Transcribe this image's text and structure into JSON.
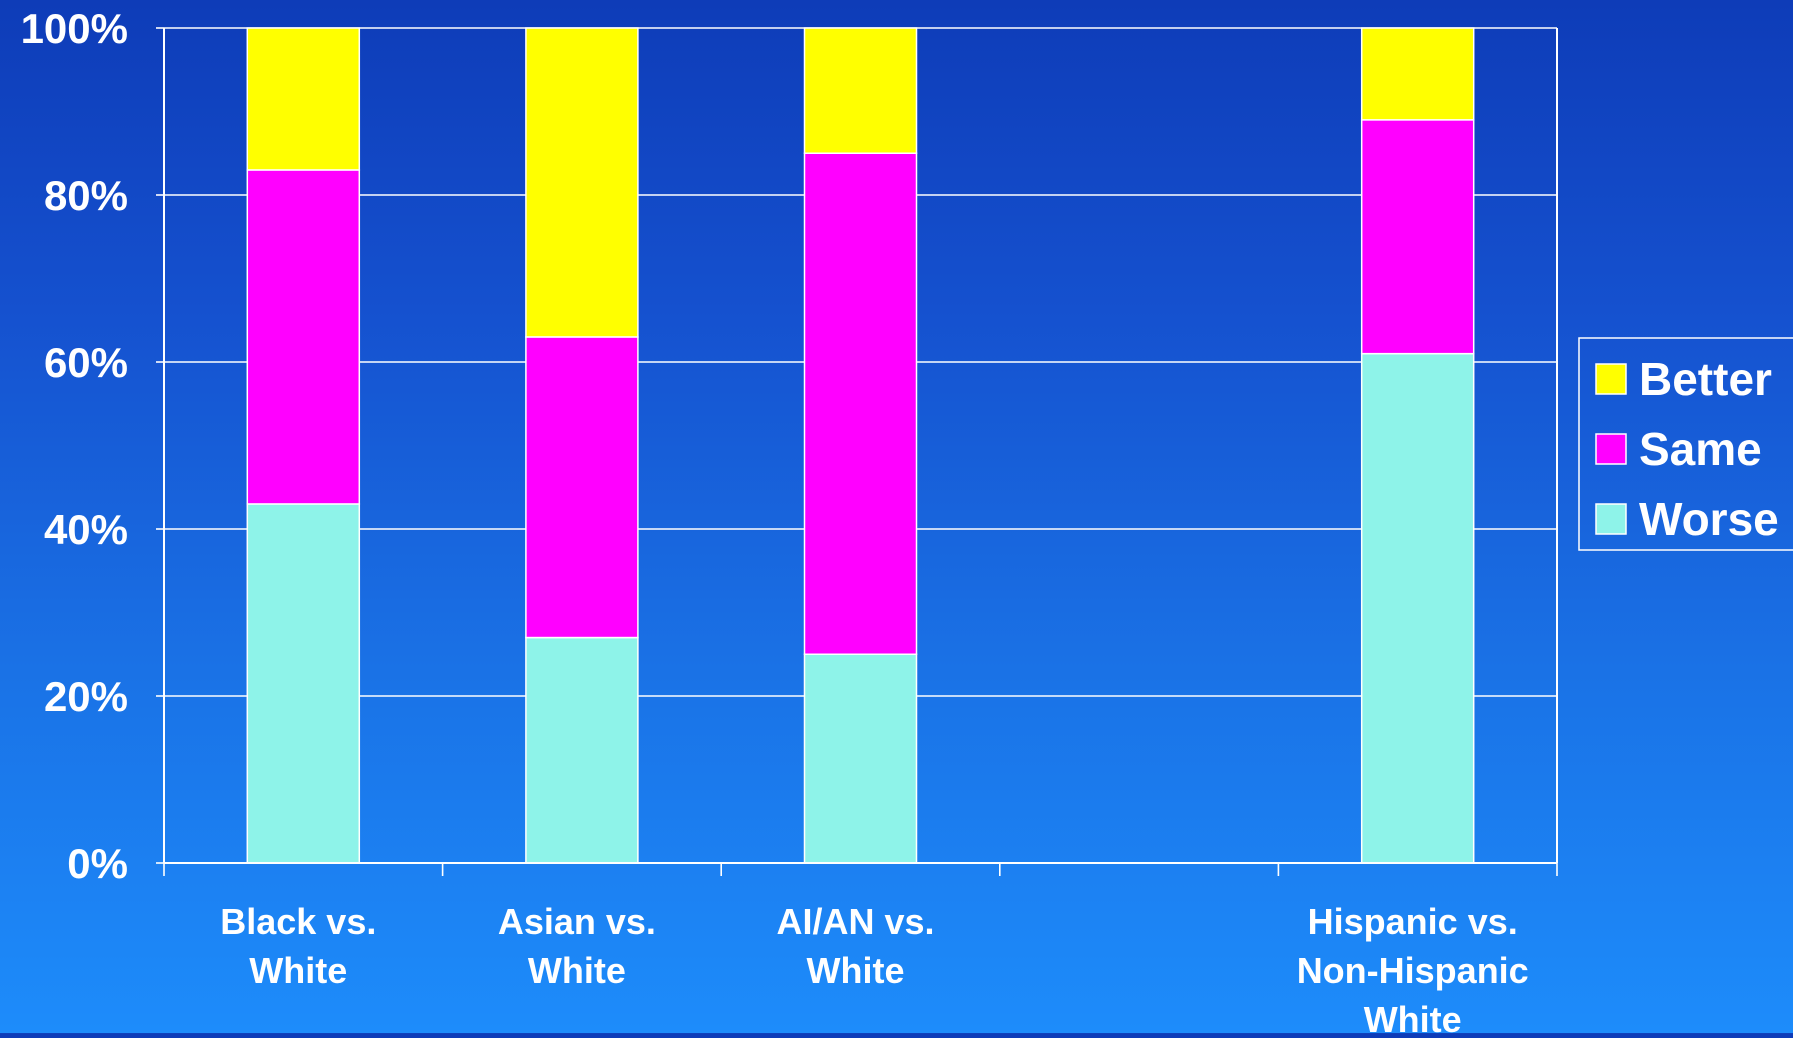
{
  "chart_data": {
    "type": "bar",
    "stacked": true,
    "percent": true,
    "categories": [
      [
        "Black vs.",
        "White"
      ],
      [
        "Asian vs.",
        "White"
      ],
      [
        "AI/AN vs.",
        "White"
      ],
      [],
      [
        "Hispanic vs.",
        "Non-Hispanic",
        "White"
      ]
    ],
    "series": [
      {
        "name": "Worse",
        "color": "#8ef3e9",
        "values": [
          43,
          27,
          25,
          null,
          61
        ]
      },
      {
        "name": "Same",
        "color": "#ff00ff",
        "values": [
          40,
          36,
          60,
          null,
          28
        ]
      },
      {
        "name": "Better",
        "color": "#ffff00",
        "values": [
          17,
          37,
          15,
          null,
          11
        ]
      }
    ],
    "ylim": [
      0,
      100
    ],
    "yticks": [
      "0%",
      "20%",
      "40%",
      "60%",
      "80%",
      "100%"
    ],
    "ytick_values": [
      0,
      20,
      40,
      60,
      80,
      100
    ],
    "grid": true,
    "legend_position": "right",
    "legend_order": [
      "Better",
      "Same",
      "Worse"
    ]
  }
}
